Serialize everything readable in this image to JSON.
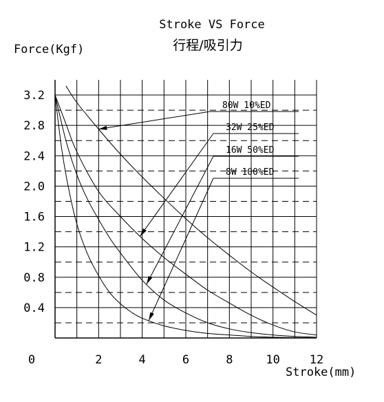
{
  "title_en": "Stroke VS  Force",
  "title_zh": "行程/吸引力",
  "chart_data": {
    "type": "line",
    "xlabel": "Stroke(mm)",
    "ylabel": "Force(Kgf)",
    "xlim": [
      0,
      12
    ],
    "ylim": [
      0,
      3.2
    ],
    "x_ticks": [
      "0",
      "2",
      "4",
      "6",
      "8",
      "10",
      "12"
    ],
    "y_ticks": [
      "3.2",
      "2.8",
      "2.4",
      "2.0",
      "1.6",
      "1.2",
      "0.8",
      "0.4"
    ],
    "grid": true,
    "series": [
      {
        "name": "80W 10%ED",
        "x": [
          0.5,
          1,
          2,
          3,
          4,
          5,
          6,
          7,
          8,
          9,
          10,
          11,
          12
        ],
        "values": [
          3.32,
          3.1,
          2.75,
          2.42,
          2.12,
          1.84,
          1.57,
          1.32,
          1.09,
          0.87,
          0.67,
          0.48,
          0.3
        ]
      },
      {
        "name": "32W 25%ED",
        "x": [
          0,
          0.5,
          1,
          2,
          3,
          4,
          5,
          6,
          7,
          8,
          9,
          10,
          11,
          12
        ],
        "values": [
          3.2,
          2.82,
          2.45,
          1.93,
          1.6,
          1.31,
          1.06,
          0.84,
          0.63,
          0.46,
          0.3,
          0.17,
          0.08,
          0.04
        ]
      },
      {
        "name": "16W  50%ED",
        "x": [
          0,
          0.5,
          1,
          1.5,
          2,
          2.5,
          3,
          4,
          5,
          6,
          7,
          8,
          9,
          10,
          11,
          12
        ],
        "values": [
          3.2,
          2.6,
          2.15,
          1.82,
          1.56,
          1.32,
          1.12,
          0.76,
          0.5,
          0.33,
          0.2,
          0.12,
          0.07,
          0.04,
          0.02,
          0.01
        ]
      },
      {
        "name": "8W 100%ED",
        "x": [
          0,
          0.3,
          0.6,
          1,
          1.5,
          2,
          2.5,
          3,
          3.5,
          4,
          5,
          6,
          7,
          8,
          9,
          10,
          11,
          12
        ],
        "values": [
          3.2,
          2.5,
          2.0,
          1.5,
          1.1,
          0.82,
          0.6,
          0.45,
          0.34,
          0.26,
          0.16,
          0.1,
          0.06,
          0.04,
          0.02,
          0.01,
          0.005,
          0.0
        ]
      }
    ]
  }
}
